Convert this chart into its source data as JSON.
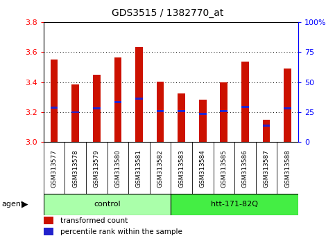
{
  "title": "GDS3515 / 1382770_at",
  "samples": [
    "GSM313577",
    "GSM313578",
    "GSM313579",
    "GSM313580",
    "GSM313581",
    "GSM313582",
    "GSM313583",
    "GSM313584",
    "GSM313585",
    "GSM313586",
    "GSM313587",
    "GSM313588"
  ],
  "bar_values": [
    3.55,
    3.385,
    3.45,
    3.565,
    3.635,
    3.405,
    3.325,
    3.285,
    3.4,
    3.535,
    3.15,
    3.49
  ],
  "percentile_values": [
    3.23,
    3.2,
    3.225,
    3.265,
    3.29,
    3.205,
    3.205,
    3.19,
    3.205,
    3.235,
    3.11,
    3.225
  ],
  "bar_bottom": 3.0,
  "ylim": [
    3.0,
    3.8
  ],
  "yticks_left": [
    3.0,
    3.2,
    3.4,
    3.6,
    3.8
  ],
  "yticks_right": [
    0,
    25,
    50,
    75,
    100
  ],
  "ytick_labels_right": [
    "0",
    "25",
    "50",
    "75",
    "100%"
  ],
  "group_labels": [
    "control",
    "htt-171-82Q"
  ],
  "group_starts": [
    0,
    6
  ],
  "group_ends": [
    6,
    12
  ],
  "group_colors": [
    "#AAFFAA",
    "#44EE44"
  ],
  "agent_label": "agent",
  "bar_color": "#CC1100",
  "percentile_color": "#2222CC",
  "bar_width": 0.35,
  "legend_items": [
    {
      "label": "transformed count",
      "color": "#CC1100"
    },
    {
      "label": "percentile rank within the sample",
      "color": "#2222CC"
    }
  ],
  "grid_color": "black",
  "xtick_bg_color": "#C8C8C8"
}
